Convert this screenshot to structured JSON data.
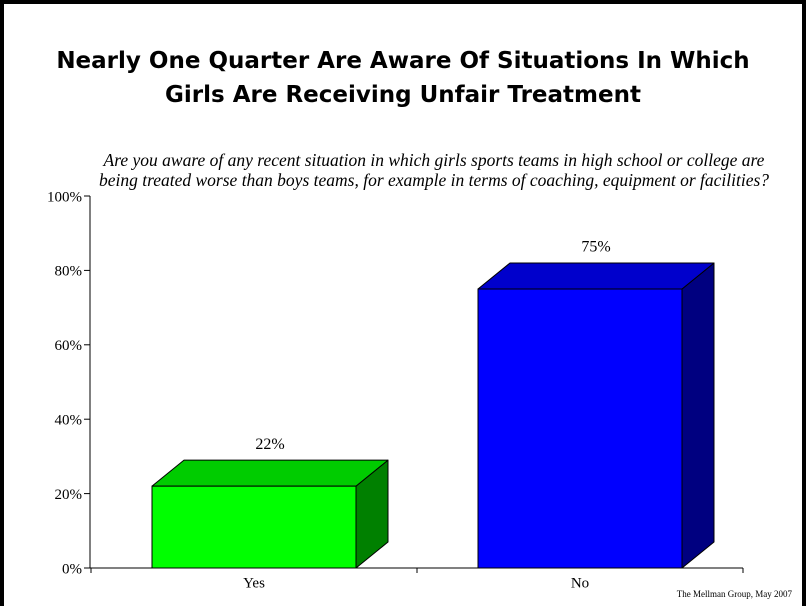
{
  "chart_data": {
    "type": "bar",
    "title": "Nearly One Quarter Are Aware Of Situations In Which Girls Are Receiving Unfair Treatment",
    "subtitle": "Are you aware of any recent situation in which girls sports teams in high school or college are being treated worse than boys teams, for example in terms of coaching, equipment or facilities?",
    "categories": [
      "Yes",
      "No"
    ],
    "values": [
      22,
      75
    ],
    "data_labels": [
      "22%",
      "75%"
    ],
    "ylim": [
      0,
      100
    ],
    "yticks": [
      0,
      20,
      40,
      60,
      80,
      100
    ],
    "ytick_labels": [
      "0%",
      "20%",
      "40%",
      "60%",
      "80%",
      "100%"
    ],
    "grid": false,
    "colors": [
      {
        "front": "#00FF00",
        "top": "#00CC00",
        "side": "#008000"
      },
      {
        "front": "#0000FF",
        "top": "#0000CC",
        "side": "#000080"
      }
    ]
  },
  "footer": {
    "source": "The Mellman Group, May 2007"
  },
  "theme": {
    "background": "#FFFFFF",
    "frame": "#000000",
    "text": "#000000"
  }
}
